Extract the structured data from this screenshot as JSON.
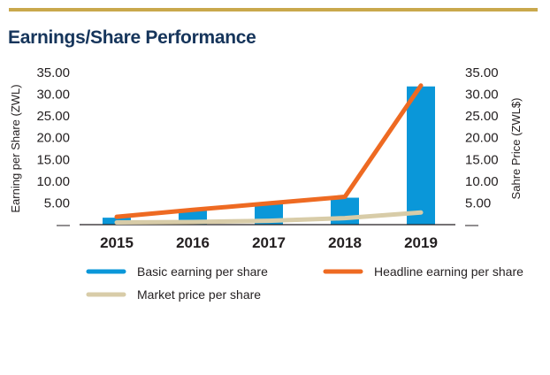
{
  "colors": {
    "rule": "#c9a84c",
    "title": "#16355b",
    "text": "#231f20",
    "axis": "#231f20",
    "basic": "#0a97d9",
    "headline": "#ee6a22",
    "market": "#d8cca8"
  },
  "header": {
    "title": "Earnings/Share Performance"
  },
  "chart_data": {
    "type": "bar",
    "title": "Earnings/Share Performance",
    "categories": [
      "2015",
      "2016",
      "2017",
      "2018",
      "2019"
    ],
    "ylabel": "Earning per Share (ZWL)",
    "y2label": "Sahre Price (ZWL$)",
    "ylim": [
      0,
      35
    ],
    "y2lim": [
      0,
      35
    ],
    "yticks": [
      "—",
      "5.00",
      "10.00",
      "15.00",
      "20.00",
      "25.00",
      "30.00",
      "35.00"
    ],
    "y2ticks": [
      "—",
      "5.00",
      "10.00",
      "15.00",
      "20.00",
      "25.00",
      "30.00",
      "35.00"
    ],
    "legend_position": "bottom",
    "series": [
      {
        "name": "Basic earning per share",
        "kind": "bar",
        "color": "#0a97d9",
        "values": [
          1.6,
          3.2,
          4.8,
          6.2,
          31.8
        ]
      },
      {
        "name": "Headline earning per share",
        "kind": "line",
        "color": "#ee6a22",
        "values": [
          1.8,
          3.4,
          4.9,
          6.4,
          32.0
        ]
      },
      {
        "name": "Market price per share",
        "kind": "line",
        "color": "#d8cca8",
        "values": [
          0.5,
          0.6,
          0.9,
          1.5,
          2.8
        ]
      }
    ]
  }
}
